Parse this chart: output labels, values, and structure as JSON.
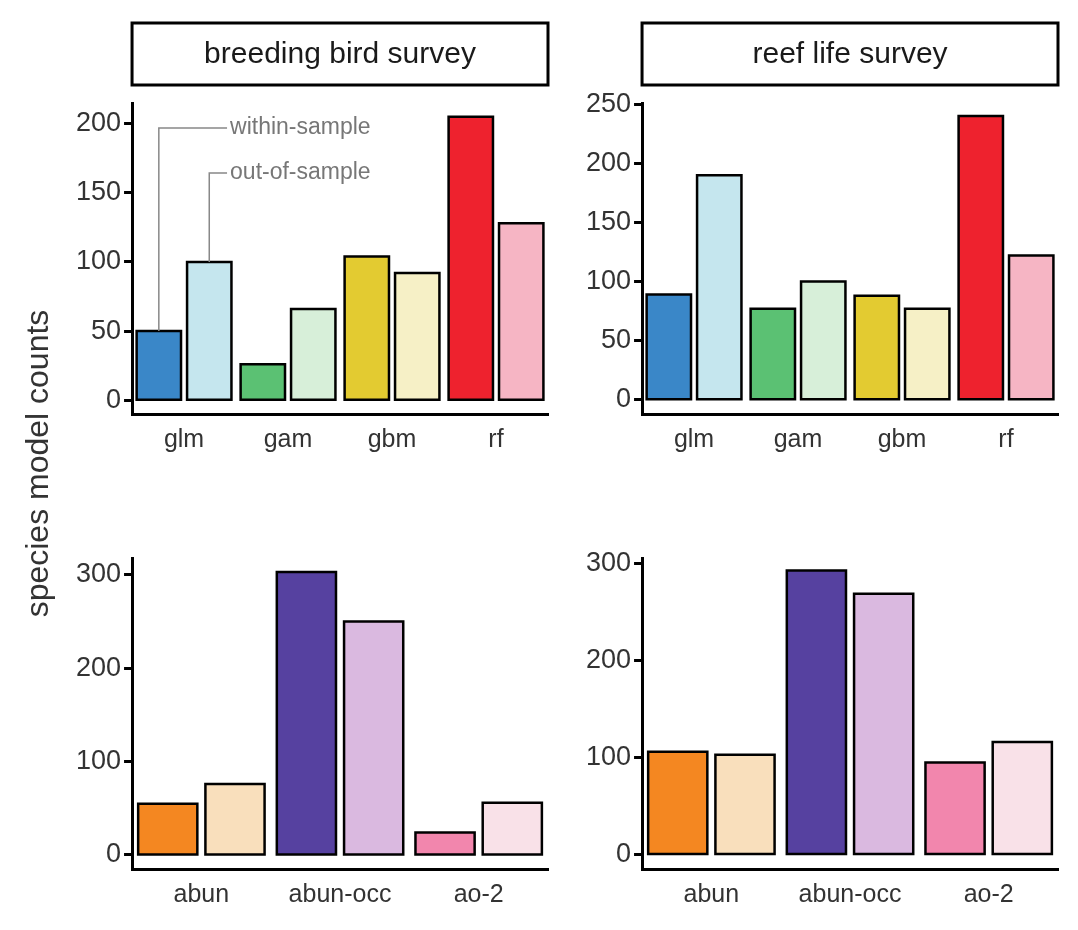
{
  "chart_data": [
    {
      "type": "bar",
      "title": "breeding bird survey",
      "ylabel": "species model counts",
      "categories": [
        "glm",
        "gam",
        "gbm",
        "rf"
      ],
      "ylim": [
        -10,
        215
      ],
      "yticks": [
        0,
        50,
        100,
        150,
        200
      ],
      "series": [
        {
          "name": "within-sample",
          "colors": [
            "#3a87c8",
            "#5bc173",
            "#e3cb31",
            "#ee222e"
          ],
          "values": [
            50,
            26,
            104,
            205
          ]
        },
        {
          "name": "out-of-sample",
          "colors": [
            "#c5e6ee",
            "#d7efd9",
            "#f6f0c6",
            "#f6b5c4"
          ],
          "values": [
            100,
            66,
            92,
            128
          ]
        }
      ]
    },
    {
      "type": "bar",
      "title": "reef life survey",
      "categories": [
        "glm",
        "gam",
        "gbm",
        "rf"
      ],
      "ylim": [
        -12,
        251
      ],
      "yticks": [
        0,
        50,
        100,
        150,
        200,
        250
      ],
      "series": [
        {
          "colors": [
            "#3a87c8",
            "#5bc173",
            "#e3cb31",
            "#ee222e"
          ],
          "values": [
            89,
            77,
            88,
            240
          ]
        },
        {
          "colors": [
            "#c5e6ee",
            "#d7efd9",
            "#f6f0c6",
            "#f6b5c4"
          ],
          "values": [
            190,
            100,
            77,
            122
          ]
        }
      ]
    },
    {
      "type": "bar",
      "categories": [
        "abun",
        "abun-occ",
        "ao-2"
      ],
      "ylim": [
        -15,
        318
      ],
      "yticks": [
        0,
        100,
        200,
        300
      ],
      "series": [
        {
          "colors": [
            "#f48721",
            "#5641a0",
            "#f286ad"
          ],
          "values": [
            55,
            303,
            24
          ]
        },
        {
          "colors": [
            "#f9dfbc",
            "#dab9e0",
            "#f9e1e8"
          ],
          "values": [
            76,
            250,
            56
          ]
        }
      ]
    },
    {
      "type": "bar",
      "categories": [
        "abun",
        "abun-occ",
        "ao-2"
      ],
      "ylim": [
        -15,
        306
      ],
      "yticks": [
        0,
        100,
        200,
        300
      ],
      "series": [
        {
          "colors": [
            "#f48721",
            "#5641a0",
            "#f286ad"
          ],
          "values": [
            106,
            293,
            95
          ]
        },
        {
          "colors": [
            "#f9dfbc",
            "#dab9e0",
            "#f9e1e8"
          ],
          "values": [
            103,
            269,
            116
          ]
        }
      ]
    }
  ]
}
